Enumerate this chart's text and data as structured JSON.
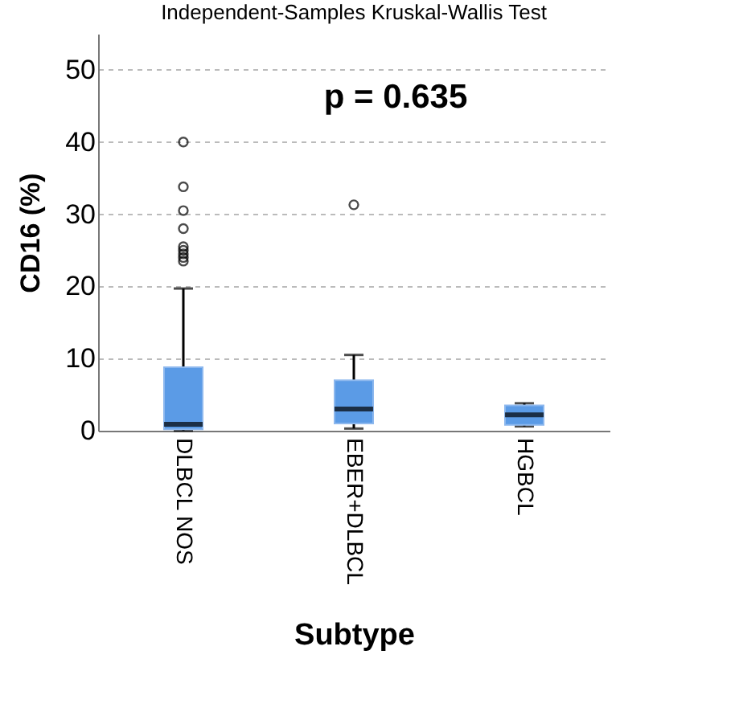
{
  "chart_data": {
    "type": "box",
    "subtitle": "Independent-Samples Kruskal-Wallis Test",
    "xlabel": "Subtype",
    "ylabel": "CD16 (%)",
    "categories": [
      "DLBCL NOS",
      "EBER+DLBCL",
      "HGBCL"
    ],
    "boxes": [
      {
        "low": 0,
        "q1": 0.2,
        "median": 0.9,
        "q3": 8.8,
        "high": 19.7,
        "outliers": [
          23.5,
          24,
          24.5,
          25,
          25.5,
          28,
          30.5,
          33.8,
          40
        ]
      },
      {
        "low": 0.3,
        "q1": 1,
        "median": 3,
        "q3": 7,
        "high": 10.5,
        "outliers": [
          31.3
        ]
      },
      {
        "low": 0.6,
        "q1": 0.8,
        "median": 2.2,
        "q3": 3.5,
        "high": 3.8
      }
    ],
    "color": "#5b9be6",
    "ylim": [
      0,
      55
    ],
    "yticks": [
      0,
      10,
      20,
      30,
      40,
      50
    ],
    "grid": "y",
    "annotations": [
      "p = 0.635"
    ]
  }
}
